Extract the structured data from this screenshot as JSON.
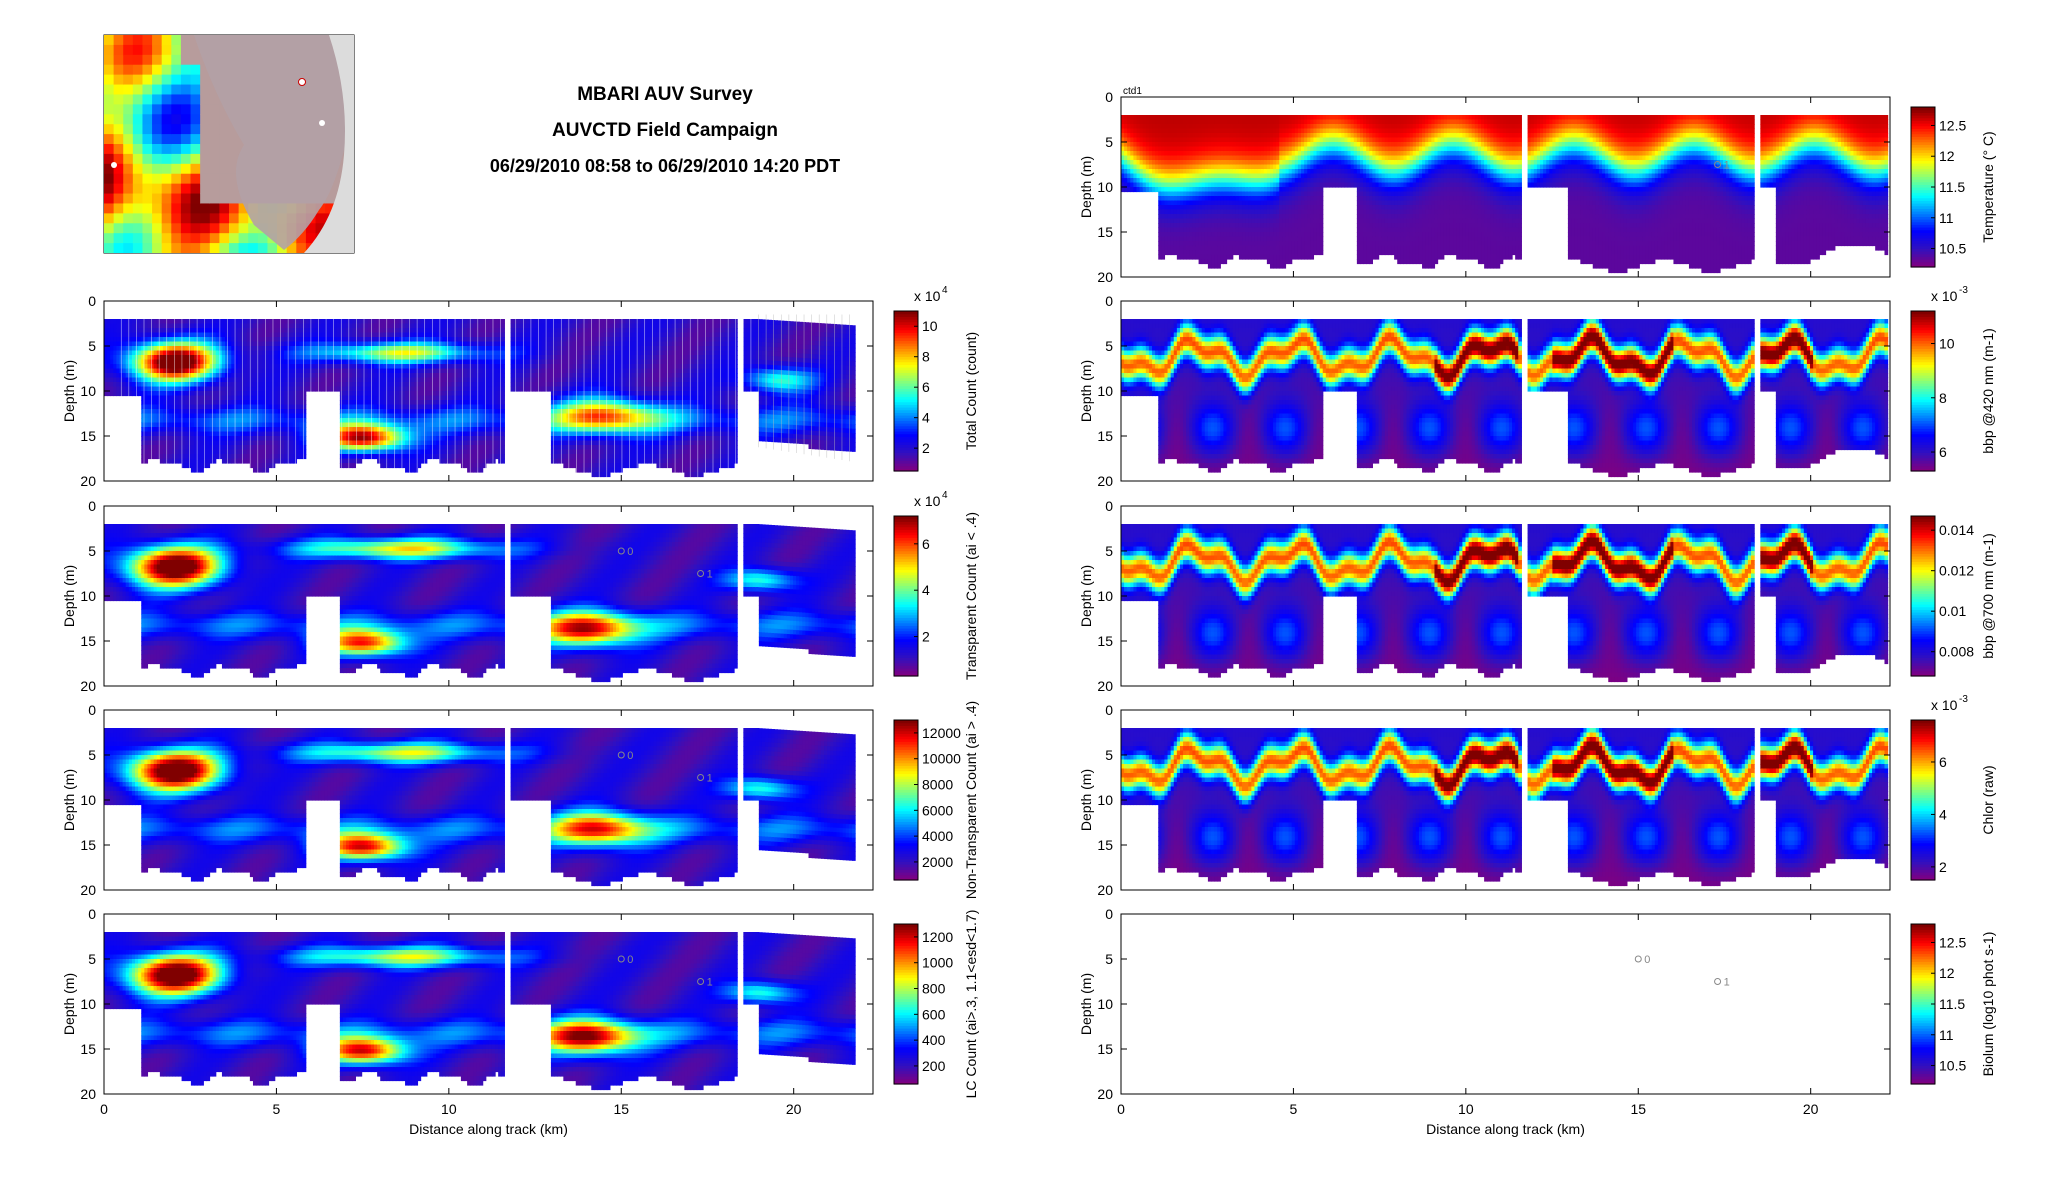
{
  "header": {
    "title_lines": [
      "MBARI AUV Survey",
      "AUVCTD Field Campaign",
      "06/29/2010 08:58 to 06/29/2010 14:20 PDT"
    ]
  },
  "map_inset": {
    "description": ""
  },
  "colors": {
    "jet": [
      "#800080",
      "#3010c0",
      "#0000ff",
      "#0080ff",
      "#00ffff",
      "#80ff80",
      "#ffff00",
      "#ff8000",
      "#ff0000",
      "#800000"
    ],
    "point_sample": "#bbbbbb",
    "axis": "#000000"
  },
  "chart_data": [
    {
      "type": "heatmap",
      "panel": "left-1",
      "ylabel": "Depth (m)",
      "ylim": [
        20,
        0
      ],
      "yticks": [
        0,
        5,
        10,
        15,
        20
      ],
      "xlim": [
        0,
        22.3
      ],
      "xticks": [
        0,
        5,
        10,
        15,
        20
      ],
      "xticklabels": [
        "",
        "",
        "",
        "",
        ""
      ],
      "colorbar": {
        "label": "Total Count (count)",
        "exponent": "x 10^4",
        "ticks": [
          "2",
          "4",
          "6",
          "8",
          "10"
        ],
        "tick_values": [
          2,
          4,
          6,
          8,
          10
        ],
        "range": [
          0.5,
          11
        ]
      },
      "hotspots": [
        [
          2.0,
          6.5,
          1.3,
          2.2,
          1.0
        ],
        [
          7.5,
          15.0,
          1.2,
          1.5,
          0.85
        ],
        [
          14.5,
          12.5,
          1.5,
          2.0,
          0.6
        ],
        [
          19.5,
          8.5,
          1.0,
          1.5,
          0.4
        ],
        [
          8.5,
          5.5,
          2.5,
          1.2,
          0.5
        ]
      ],
      "sample_profiles": true
    },
    {
      "type": "heatmap",
      "panel": "left-2",
      "ylabel": "Depth (m)",
      "ylim": [
        20,
        0
      ],
      "yticks": [
        0,
        5,
        10,
        15,
        20
      ],
      "xlim": [
        0,
        22.3
      ],
      "xticks": [
        0,
        5,
        10,
        15,
        20
      ],
      "xticklabels": [
        "",
        "",
        "",
        "",
        ""
      ],
      "colorbar": {
        "label": "Transparent Count (ai < .4)",
        "exponent": "x 10^4",
        "ticks": [
          "2",
          "4",
          "6"
        ],
        "tick_values": [
          2,
          4,
          6
        ],
        "range": [
          0.3,
          7.2
        ]
      },
      "hotspots": [
        [
          2.0,
          6.5,
          1.4,
          2.3,
          1.0
        ],
        [
          7.5,
          15.0,
          1.2,
          1.5,
          0.75
        ],
        [
          14.0,
          13.5,
          1.4,
          2.0,
          0.7
        ],
        [
          19.0,
          8.0,
          1.0,
          1.3,
          0.4
        ],
        [
          8.5,
          4.5,
          3.0,
          1.2,
          0.55
        ]
      ],
      "annotations": [
        {
          "x": 15.0,
          "y": 5.0,
          "text": "0"
        },
        {
          "x": 17.3,
          "y": 7.5,
          "text": "1"
        }
      ]
    },
    {
      "type": "heatmap",
      "panel": "left-3",
      "ylabel": "Depth (m)",
      "ylim": [
        20,
        0
      ],
      "yticks": [
        0,
        5,
        10,
        15,
        20
      ],
      "xlim": [
        0,
        22.3
      ],
      "xticks": [
        0,
        5,
        10,
        15,
        20
      ],
      "xticklabels": [
        "",
        "",
        "",
        "",
        ""
      ],
      "colorbar": {
        "label": "Non-Transparent Count (ai > .4)",
        "exponent": "",
        "ticks": [
          "2000",
          "4000",
          "6000",
          "8000",
          "10000",
          "12000"
        ],
        "tick_values": [
          2000,
          4000,
          6000,
          8000,
          10000,
          12000
        ],
        "range": [
          600,
          13000
        ]
      },
      "hotspots": [
        [
          2.0,
          6.5,
          1.4,
          2.3,
          1.0
        ],
        [
          7.5,
          15.0,
          1.2,
          1.5,
          0.8
        ],
        [
          14.3,
          13.0,
          1.4,
          2.0,
          0.65
        ],
        [
          19.0,
          8.5,
          1.0,
          1.3,
          0.4
        ],
        [
          8.5,
          4.5,
          3.0,
          1.2,
          0.5
        ]
      ],
      "annotations": [
        {
          "x": 15.0,
          "y": 5.0,
          "text": "0"
        },
        {
          "x": 17.3,
          "y": 7.5,
          "text": "1"
        }
      ]
    },
    {
      "type": "heatmap",
      "panel": "left-4",
      "ylabel": "Depth (m)",
      "ylim": [
        20,
        0
      ],
      "yticks": [
        0,
        5,
        10,
        15,
        20
      ],
      "xlim": [
        0,
        22.3
      ],
      "xticks": [
        0,
        5,
        10,
        15,
        20
      ],
      "xticklabels": [
        "0",
        "5",
        "10",
        "15",
        "20"
      ],
      "xlabel": "Distance along track (km)",
      "colorbar": {
        "label": "LC Count (ai>.3, 1.1<esd<1.7)",
        "exponent": "",
        "ticks": [
          "200",
          "400",
          "600",
          "800",
          "1000",
          "1200"
        ],
        "tick_values": [
          200,
          400,
          600,
          800,
          1000,
          1200
        ],
        "range": [
          60,
          1300
        ]
      },
      "hotspots": [
        [
          2.0,
          6.5,
          1.4,
          2.3,
          1.0
        ],
        [
          7.5,
          15.0,
          1.2,
          1.5,
          0.8
        ],
        [
          14.0,
          13.5,
          1.4,
          2.0,
          0.75
        ],
        [
          19.0,
          8.5,
          1.0,
          1.3,
          0.4
        ],
        [
          8.5,
          4.5,
          3.0,
          1.2,
          0.5
        ]
      ],
      "annotations": [
        {
          "x": 15.0,
          "y": 5.0,
          "text": "0"
        },
        {
          "x": 17.3,
          "y": 7.5,
          "text": "1"
        }
      ]
    },
    {
      "type": "heatmap",
      "panel": "right-1",
      "label_top": "ctd1",
      "ylabel": "Depth (m)",
      "ylim": [
        20,
        0
      ],
      "yticks": [
        0,
        5,
        10,
        15,
        20
      ],
      "xlim": [
        0,
        22.3
      ],
      "xticks": [
        0,
        5,
        10,
        15,
        20
      ],
      "xticklabels": [
        "",
        "",
        "",
        "",
        ""
      ],
      "colorbar": {
        "label": "Temperature (° C)",
        "exponent": "",
        "ticks": [
          "10.5",
          "11",
          "11.5",
          "12",
          "12.5"
        ],
        "tick_values": [
          10.5,
          11,
          11.5,
          12,
          12.5
        ],
        "range": [
          10.2,
          12.8
        ]
      },
      "profile": "thermocline",
      "annotations": [
        {
          "x": 17.3,
          "y": 7.5,
          "text": "1"
        }
      ]
    },
    {
      "type": "heatmap",
      "panel": "right-2",
      "ylabel": "Depth (m)",
      "ylim": [
        20,
        0
      ],
      "yticks": [
        0,
        5,
        10,
        15,
        20
      ],
      "xlim": [
        0,
        22.3
      ],
      "xticks": [
        0,
        5,
        10,
        15,
        20
      ],
      "xticklabels": [
        "",
        "",
        "",
        "",
        ""
      ],
      "colorbar": {
        "label": "bbp @420 nm (m-1)",
        "exponent": "x 10^-3",
        "ticks": [
          "6",
          "8",
          "10"
        ],
        "tick_values": [
          6,
          8,
          10
        ],
        "range": [
          5.3,
          11.2
        ]
      },
      "profile": "layer"
    },
    {
      "type": "heatmap",
      "panel": "right-3",
      "ylabel": "Depth (m)",
      "ylim": [
        20,
        0
      ],
      "yticks": [
        0,
        5,
        10,
        15,
        20
      ],
      "xlim": [
        0,
        22.3
      ],
      "xticks": [
        0,
        5,
        10,
        15,
        20
      ],
      "xticklabels": [
        "",
        "",
        "",
        "",
        ""
      ],
      "colorbar": {
        "label": "bbp @700 nm (m-1)",
        "exponent": "",
        "ticks": [
          "0.008",
          "0.01",
          "0.012",
          "0.014"
        ],
        "tick_values": [
          0.008,
          0.01,
          0.012,
          0.014
        ],
        "range": [
          0.0068,
          0.0147
        ]
      },
      "profile": "layer"
    },
    {
      "type": "heatmap",
      "panel": "right-4",
      "ylabel": "Depth (m)",
      "ylim": [
        20,
        0
      ],
      "yticks": [
        0,
        5,
        10,
        15,
        20
      ],
      "xlim": [
        0,
        22.3
      ],
      "xticks": [
        0,
        5,
        10,
        15,
        20
      ],
      "xticklabels": [
        "",
        "",
        "",
        "",
        ""
      ],
      "colorbar": {
        "label": "Chlor (raw)",
        "exponent": "x 10^-3",
        "ticks": [
          "2",
          "4",
          "6"
        ],
        "tick_values": [
          2,
          4,
          6
        ],
        "range": [
          1.5,
          7.6
        ]
      },
      "profile": "layer"
    },
    {
      "type": "heatmap",
      "panel": "right-5",
      "ylabel": "Depth (m)",
      "ylim": [
        20,
        0
      ],
      "yticks": [
        0,
        5,
        10,
        15,
        20
      ],
      "xlim": [
        0,
        22.3
      ],
      "xticks": [
        0,
        5,
        10,
        15,
        20
      ],
      "xticklabels": [
        "0",
        "5",
        "10",
        "15",
        "20"
      ],
      "xlabel": "Distance along track (km)",
      "colorbar": {
        "label": "Biolum (log10 phot s-1)",
        "exponent": "",
        "ticks": [
          "10.5",
          "11",
          "11.5",
          "12",
          "12.5"
        ],
        "tick_values": [
          10.5,
          11,
          11.5,
          12,
          12.5
        ],
        "range": [
          10.2,
          12.8
        ]
      },
      "profile": "empty",
      "annotations": [
        {
          "x": 15.0,
          "y": 5.0,
          "text": "0"
        },
        {
          "x": 17.3,
          "y": 7.5,
          "text": "1"
        }
      ]
    }
  ]
}
